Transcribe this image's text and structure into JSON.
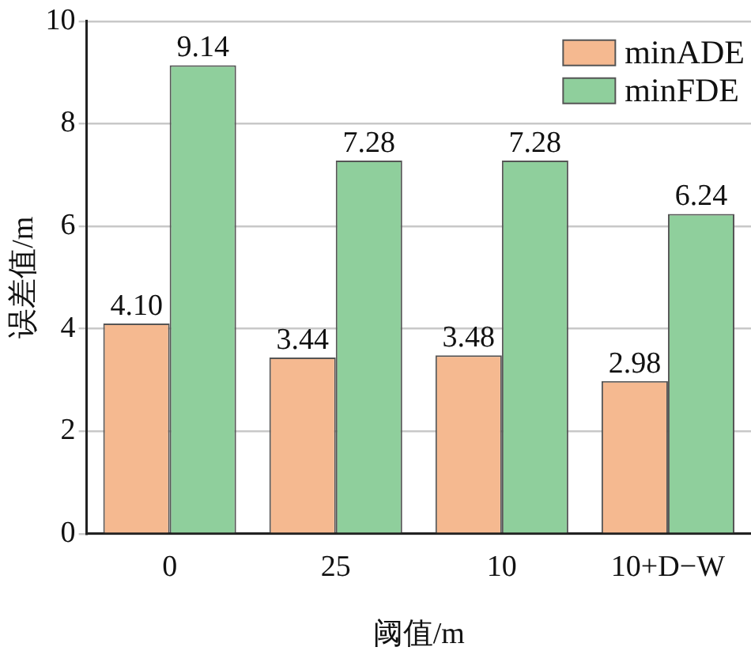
{
  "chart_data": {
    "type": "bar",
    "xlabel": "阈值/m",
    "ylabel": "误差值/m",
    "categories": [
      "0",
      "25",
      "10",
      "10+D−W"
    ],
    "series": [
      {
        "name": "minADE",
        "color": "#f5b990",
        "values": [
          4.1,
          3.44,
          3.48,
          2.98
        ],
        "value_labels": [
          "4.10",
          "3.44",
          "3.48",
          "2.98"
        ]
      },
      {
        "name": "minFDE",
        "color": "#8fcf9c",
        "values": [
          9.14,
          7.28,
          7.28,
          6.24
        ],
        "value_labels": [
          "9.14",
          "7.28",
          "7.28",
          "6.24"
        ]
      }
    ],
    "ylim": [
      0,
      10
    ],
    "yticks": [
      0,
      2,
      4,
      6,
      8,
      10
    ],
    "grid": "y",
    "legend": "top right"
  }
}
